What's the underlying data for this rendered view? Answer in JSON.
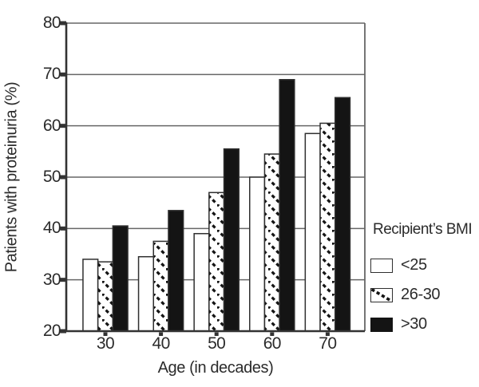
{
  "figure": {
    "background": "#ffffff"
  },
  "chart_data": {
    "type": "bar",
    "title": "",
    "xlabel": "Age (in decades)",
    "ylabel": "Patients with proteinuria (%)",
    "categories": [
      "30",
      "40",
      "50",
      "60",
      "70"
    ],
    "yticks": [
      "20",
      "30",
      "40",
      "50",
      "60",
      "70",
      "80"
    ],
    "ylim": [
      20,
      80
    ],
    "grid": true,
    "legend_position": "right",
    "legend_title": "Recipient’s BMI",
    "series": [
      {
        "name": "<25",
        "pattern": "plain",
        "values": [
          34,
          34.5,
          39,
          50,
          58.5
        ]
      },
      {
        "name": "26-30",
        "pattern": "hatched",
        "values": [
          33.5,
          37.5,
          47,
          54.5,
          60.5
        ]
      },
      {
        "name": ">30",
        "pattern": "solid",
        "values": [
          40.5,
          43.5,
          55.5,
          69,
          65.5
        ]
      }
    ],
    "colors": {
      "grid": "#666666",
      "axis": "#333333",
      "outline": "#2f2f2f",
      "black_bar": "#141414",
      "text": "#2b2b2b"
    }
  }
}
